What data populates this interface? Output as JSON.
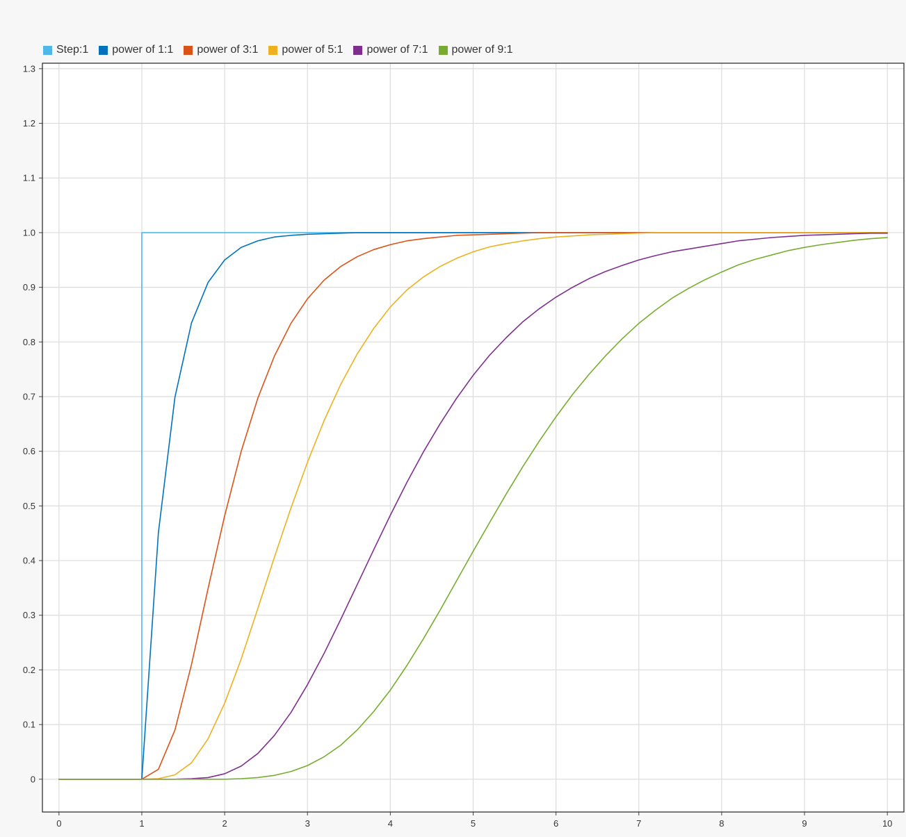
{
  "chart_data": {
    "type": "line",
    "title": "",
    "xlabel": "",
    "ylabel": "",
    "xlim": [
      -0.2,
      10.2
    ],
    "ylim": [
      -0.06,
      1.31
    ],
    "grid": true,
    "legend_position": "top-left",
    "xticks": [
      "0",
      "1",
      "2",
      "3",
      "4",
      "5",
      "6",
      "7",
      "8",
      "9",
      "10"
    ],
    "yticks": [
      "0",
      "0.1",
      "0.2",
      "0.3",
      "0.4",
      "0.5",
      "0.6",
      "0.7",
      "0.8",
      "0.9",
      "1.0",
      "1.1",
      "1.2",
      "1.3"
    ],
    "x": [
      0,
      0.2,
      0.4,
      0.6,
      0.8,
      1.0,
      1.2,
      1.4,
      1.6,
      1.8,
      2.0,
      2.2,
      2.4,
      2.6,
      2.8,
      3.0,
      3.2,
      3.4,
      3.6,
      3.8,
      4.0,
      4.2,
      4.4,
      4.6,
      4.8,
      5.0,
      5.2,
      5.4,
      5.6,
      5.8,
      6.0,
      6.2,
      6.4,
      6.6,
      6.8,
      7.0,
      7.2,
      7.4,
      7.6,
      7.8,
      8.0,
      8.2,
      8.4,
      8.6,
      8.8,
      9.0,
      9.2,
      9.4,
      9.6,
      9.8,
      10.0
    ],
    "series": [
      {
        "name": "Step:1",
        "color": "#4db8e8",
        "x": [
          0,
          1,
          1,
          10
        ],
        "values": [
          0,
          0,
          1,
          1
        ]
      },
      {
        "name": "power of 1:1",
        "color": "#0072bd",
        "values": [
          0,
          0,
          0,
          0,
          0,
          0,
          0.451,
          0.699,
          0.835,
          0.909,
          0.95,
          0.973,
          0.985,
          0.992,
          0.995,
          0.997,
          0.998,
          0.999,
          1,
          1,
          1,
          1,
          1,
          1,
          1,
          1,
          1,
          1,
          1,
          1,
          1,
          1,
          1,
          1,
          1,
          1,
          1,
          1,
          1,
          1,
          1,
          1,
          1,
          1,
          1,
          1,
          1,
          1,
          1,
          1,
          1
        ]
      },
      {
        "name": "power of 3:1",
        "color": "#d95319",
        "values": [
          0,
          0,
          0,
          0,
          0,
          0,
          0.018,
          0.09,
          0.21,
          0.349,
          0.482,
          0.6,
          0.697,
          0.774,
          0.834,
          0.879,
          0.913,
          0.938,
          0.956,
          0.969,
          0.978,
          0.985,
          0.989,
          0.992,
          0.995,
          0.996,
          0.997,
          0.998,
          0.999,
          1,
          1,
          1,
          1,
          1,
          1,
          1,
          1,
          1,
          1,
          1,
          1,
          1,
          1,
          1,
          1,
          1,
          1,
          1,
          1,
          1,
          1
        ]
      },
      {
        "name": "power of 5:1",
        "color": "#edb120",
        "values": [
          0,
          0,
          0,
          0,
          0,
          0,
          0.001,
          0.008,
          0.03,
          0.074,
          0.139,
          0.22,
          0.312,
          0.406,
          0.496,
          0.58,
          0.656,
          0.722,
          0.778,
          0.825,
          0.864,
          0.895,
          0.919,
          0.938,
          0.953,
          0.965,
          0.974,
          0.98,
          0.985,
          0.989,
          0.992,
          0.994,
          0.996,
          0.997,
          0.998,
          0.999,
          1,
          1,
          1,
          1,
          1,
          1,
          1,
          1,
          1,
          1,
          1,
          1,
          1,
          1,
          1
        ]
      },
      {
        "name": "power of 7:1",
        "color": "#7e2f8e",
        "values": [
          0,
          0,
          0,
          0,
          0,
          0,
          0,
          0,
          0.001,
          0.003,
          0.01,
          0.024,
          0.047,
          0.08,
          0.122,
          0.173,
          0.23,
          0.292,
          0.356,
          0.42,
          0.483,
          0.543,
          0.599,
          0.65,
          0.697,
          0.739,
          0.776,
          0.808,
          0.837,
          0.861,
          0.882,
          0.9,
          0.916,
          0.929,
          0.94,
          0.95,
          0.958,
          0.965,
          0.97,
          0.975,
          0.98,
          0.985,
          0.988,
          0.991,
          0.993,
          0.995,
          0.996,
          0.997,
          0.998,
          0.999,
          0.999
        ]
      },
      {
        "name": "power of 9:1",
        "color": "#77ac30",
        "values": [
          0,
          0,
          0,
          0,
          0,
          0,
          0,
          0,
          0,
          0,
          0,
          0.001,
          0.003,
          0.007,
          0.014,
          0.025,
          0.041,
          0.062,
          0.09,
          0.124,
          0.163,
          0.208,
          0.257,
          0.309,
          0.363,
          0.417,
          0.47,
          0.522,
          0.572,
          0.619,
          0.663,
          0.704,
          0.741,
          0.775,
          0.806,
          0.834,
          0.858,
          0.88,
          0.898,
          0.914,
          0.928,
          0.941,
          0.951,
          0.959,
          0.967,
          0.973,
          0.978,
          0.982,
          0.986,
          0.989,
          0.991
        ]
      }
    ]
  }
}
